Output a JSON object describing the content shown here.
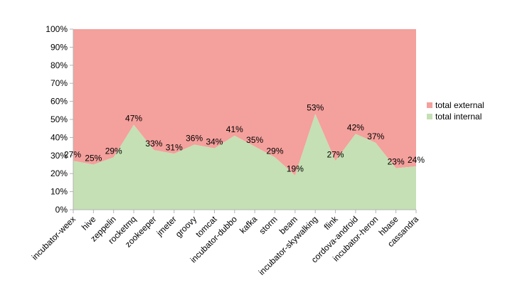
{
  "chart_data": {
    "type": "area",
    "stacked": "percent",
    "categories": [
      "incubator-weex",
      "hive",
      "zeppelin",
      "rocketmq",
      "zookeeper",
      "jmeter",
      "groovy",
      "tomcat",
      "incubator-dubbo",
      "kafka",
      "storm",
      "beam",
      "incubator-skywalking",
      "flink",
      "cordova-android",
      "incubator-heron",
      "hbase",
      "cassandra"
    ],
    "series": [
      {
        "name": "total internal",
        "values": [
          27,
          25,
          29,
          47,
          33,
          31,
          36,
          34,
          41,
          35,
          29,
          19,
          53,
          27,
          42,
          37,
          23,
          24
        ],
        "color": "#c5e0b4"
      },
      {
        "name": "total external",
        "values": [
          73,
          75,
          71,
          53,
          67,
          69,
          64,
          66,
          59,
          65,
          71,
          81,
          47,
          73,
          58,
          63,
          77,
          76
        ],
        "color": "#f4a09c"
      }
    ],
    "data_labels": [
      "27%",
      "25%",
      "29%",
      "47%",
      "33%",
      "31%",
      "36%",
      "34%",
      "41%",
      "35%",
      "29%",
      "19%",
      "53%",
      "27%",
      "42%",
      "37%",
      "23%",
      "24%"
    ],
    "y_ticks": [
      "0%",
      "10%",
      "20%",
      "30%",
      "40%",
      "50%",
      "60%",
      "70%",
      "80%",
      "90%",
      "100%"
    ],
    "ylim": [
      0,
      100
    ],
    "legend_position": "right",
    "legend_order": [
      "total external",
      "total internal"
    ],
    "grid": false
  }
}
